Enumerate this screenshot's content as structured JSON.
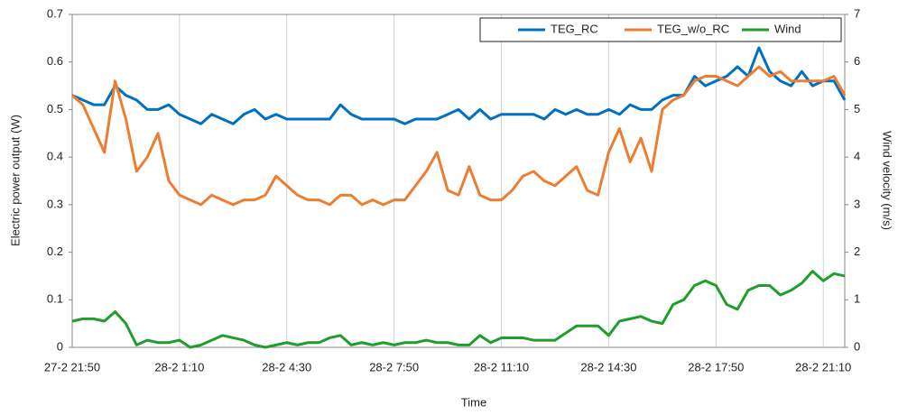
{
  "chart_data": {
    "type": "line",
    "xlabel": "Time",
    "ylabel": "Electric power output (W)",
    "y2label": "Wind velocity (m/s)",
    "categories": [
      "27-2 21:50",
      null,
      null,
      null,
      null,
      null,
      null,
      null,
      null,
      null,
      "28-2 1:10",
      null,
      null,
      null,
      null,
      null,
      null,
      null,
      null,
      null,
      "28-2 4:30",
      null,
      null,
      null,
      null,
      null,
      null,
      null,
      null,
      null,
      "28-2 7:50",
      null,
      null,
      null,
      null,
      null,
      null,
      null,
      null,
      null,
      "28-2 11:10",
      null,
      null,
      null,
      null,
      null,
      null,
      null,
      null,
      null,
      "28-2 14:30",
      null,
      null,
      null,
      null,
      null,
      null,
      null,
      null,
      null,
      "28-2 17:50",
      null,
      null,
      null,
      null,
      null,
      null,
      null,
      null,
      null,
      "28-2 21:10",
      null,
      null
    ],
    "series": [
      {
        "name": "TEG_RC",
        "color": "#0070c0",
        "values": [
          0.53,
          0.52,
          0.51,
          0.51,
          0.55,
          0.53,
          0.52,
          0.5,
          0.5,
          0.51,
          0.49,
          0.48,
          0.47,
          0.49,
          0.48,
          0.47,
          0.49,
          0.5,
          0.48,
          0.49,
          0.48,
          0.48,
          0.48,
          0.48,
          0.48,
          0.51,
          0.49,
          0.48,
          0.48,
          0.48,
          0.48,
          0.47,
          0.48,
          0.48,
          0.48,
          0.49,
          0.5,
          0.48,
          0.5,
          0.48,
          0.49,
          0.49,
          0.49,
          0.49,
          0.48,
          0.5,
          0.49,
          0.5,
          0.49,
          0.49,
          0.5,
          0.49,
          0.51,
          0.5,
          0.5,
          0.52,
          0.53,
          0.53,
          0.57,
          0.55,
          0.56,
          0.57,
          0.59,
          0.57,
          0.63,
          0.58,
          0.56,
          0.55,
          0.58,
          0.55,
          0.56,
          0.56,
          0.52
        ]
      },
      {
        "name": "TEG_w/o_RC",
        "color": "#ed7d31",
        "values": [
          0.53,
          0.51,
          0.46,
          0.41,
          0.56,
          0.48,
          0.37,
          0.4,
          0.45,
          0.35,
          0.32,
          0.31,
          0.3,
          0.32,
          0.31,
          0.3,
          0.31,
          0.31,
          0.32,
          0.36,
          0.34,
          0.32,
          0.31,
          0.31,
          0.3,
          0.32,
          0.32,
          0.3,
          0.31,
          0.3,
          0.31,
          0.31,
          0.34,
          0.37,
          0.41,
          0.33,
          0.32,
          0.38,
          0.32,
          0.31,
          0.31,
          0.33,
          0.36,
          0.37,
          0.35,
          0.34,
          0.36,
          0.38,
          0.33,
          0.32,
          0.41,
          0.46,
          0.39,
          0.44,
          0.37,
          0.5,
          0.52,
          0.53,
          0.56,
          0.57,
          0.57,
          0.56,
          0.55,
          0.57,
          0.59,
          0.57,
          0.58,
          0.56,
          0.56,
          0.56,
          0.56,
          0.57,
          0.53
        ]
      },
      {
        "name": "Wind",
        "color": "#1e9e2a",
        "axis": "y2",
        "values": [
          0.55,
          0.6,
          0.6,
          0.55,
          0.75,
          0.5,
          0.05,
          0.15,
          0.1,
          0.1,
          0.15,
          0.0,
          0.05,
          0.15,
          0.25,
          0.2,
          0.15,
          0.05,
          0.0,
          0.05,
          0.1,
          0.05,
          0.1,
          0.1,
          0.2,
          0.25,
          0.05,
          0.1,
          0.05,
          0.1,
          0.05,
          0.1,
          0.1,
          0.15,
          0.1,
          0.1,
          0.05,
          0.05,
          0.25,
          0.1,
          0.2,
          0.2,
          0.2,
          0.15,
          0.15,
          0.15,
          0.3,
          0.45,
          0.45,
          0.45,
          0.25,
          0.55,
          0.6,
          0.65,
          0.55,
          0.5,
          0.9,
          1.0,
          1.3,
          1.4,
          1.3,
          0.9,
          0.8,
          1.2,
          1.3,
          1.3,
          1.1,
          1.2,
          1.35,
          1.6,
          1.4,
          1.55,
          1.5
        ]
      }
    ],
    "ylim": [
      0,
      0.7
    ],
    "yticks": [
      0,
      0.1,
      0.2,
      0.3,
      0.4,
      0.5,
      0.6,
      0.7
    ],
    "y2lim": [
      0,
      7
    ],
    "y2ticks": [
      0,
      1,
      2,
      3,
      4,
      5,
      6,
      7
    ],
    "grid": true,
    "legend": "upper right"
  }
}
